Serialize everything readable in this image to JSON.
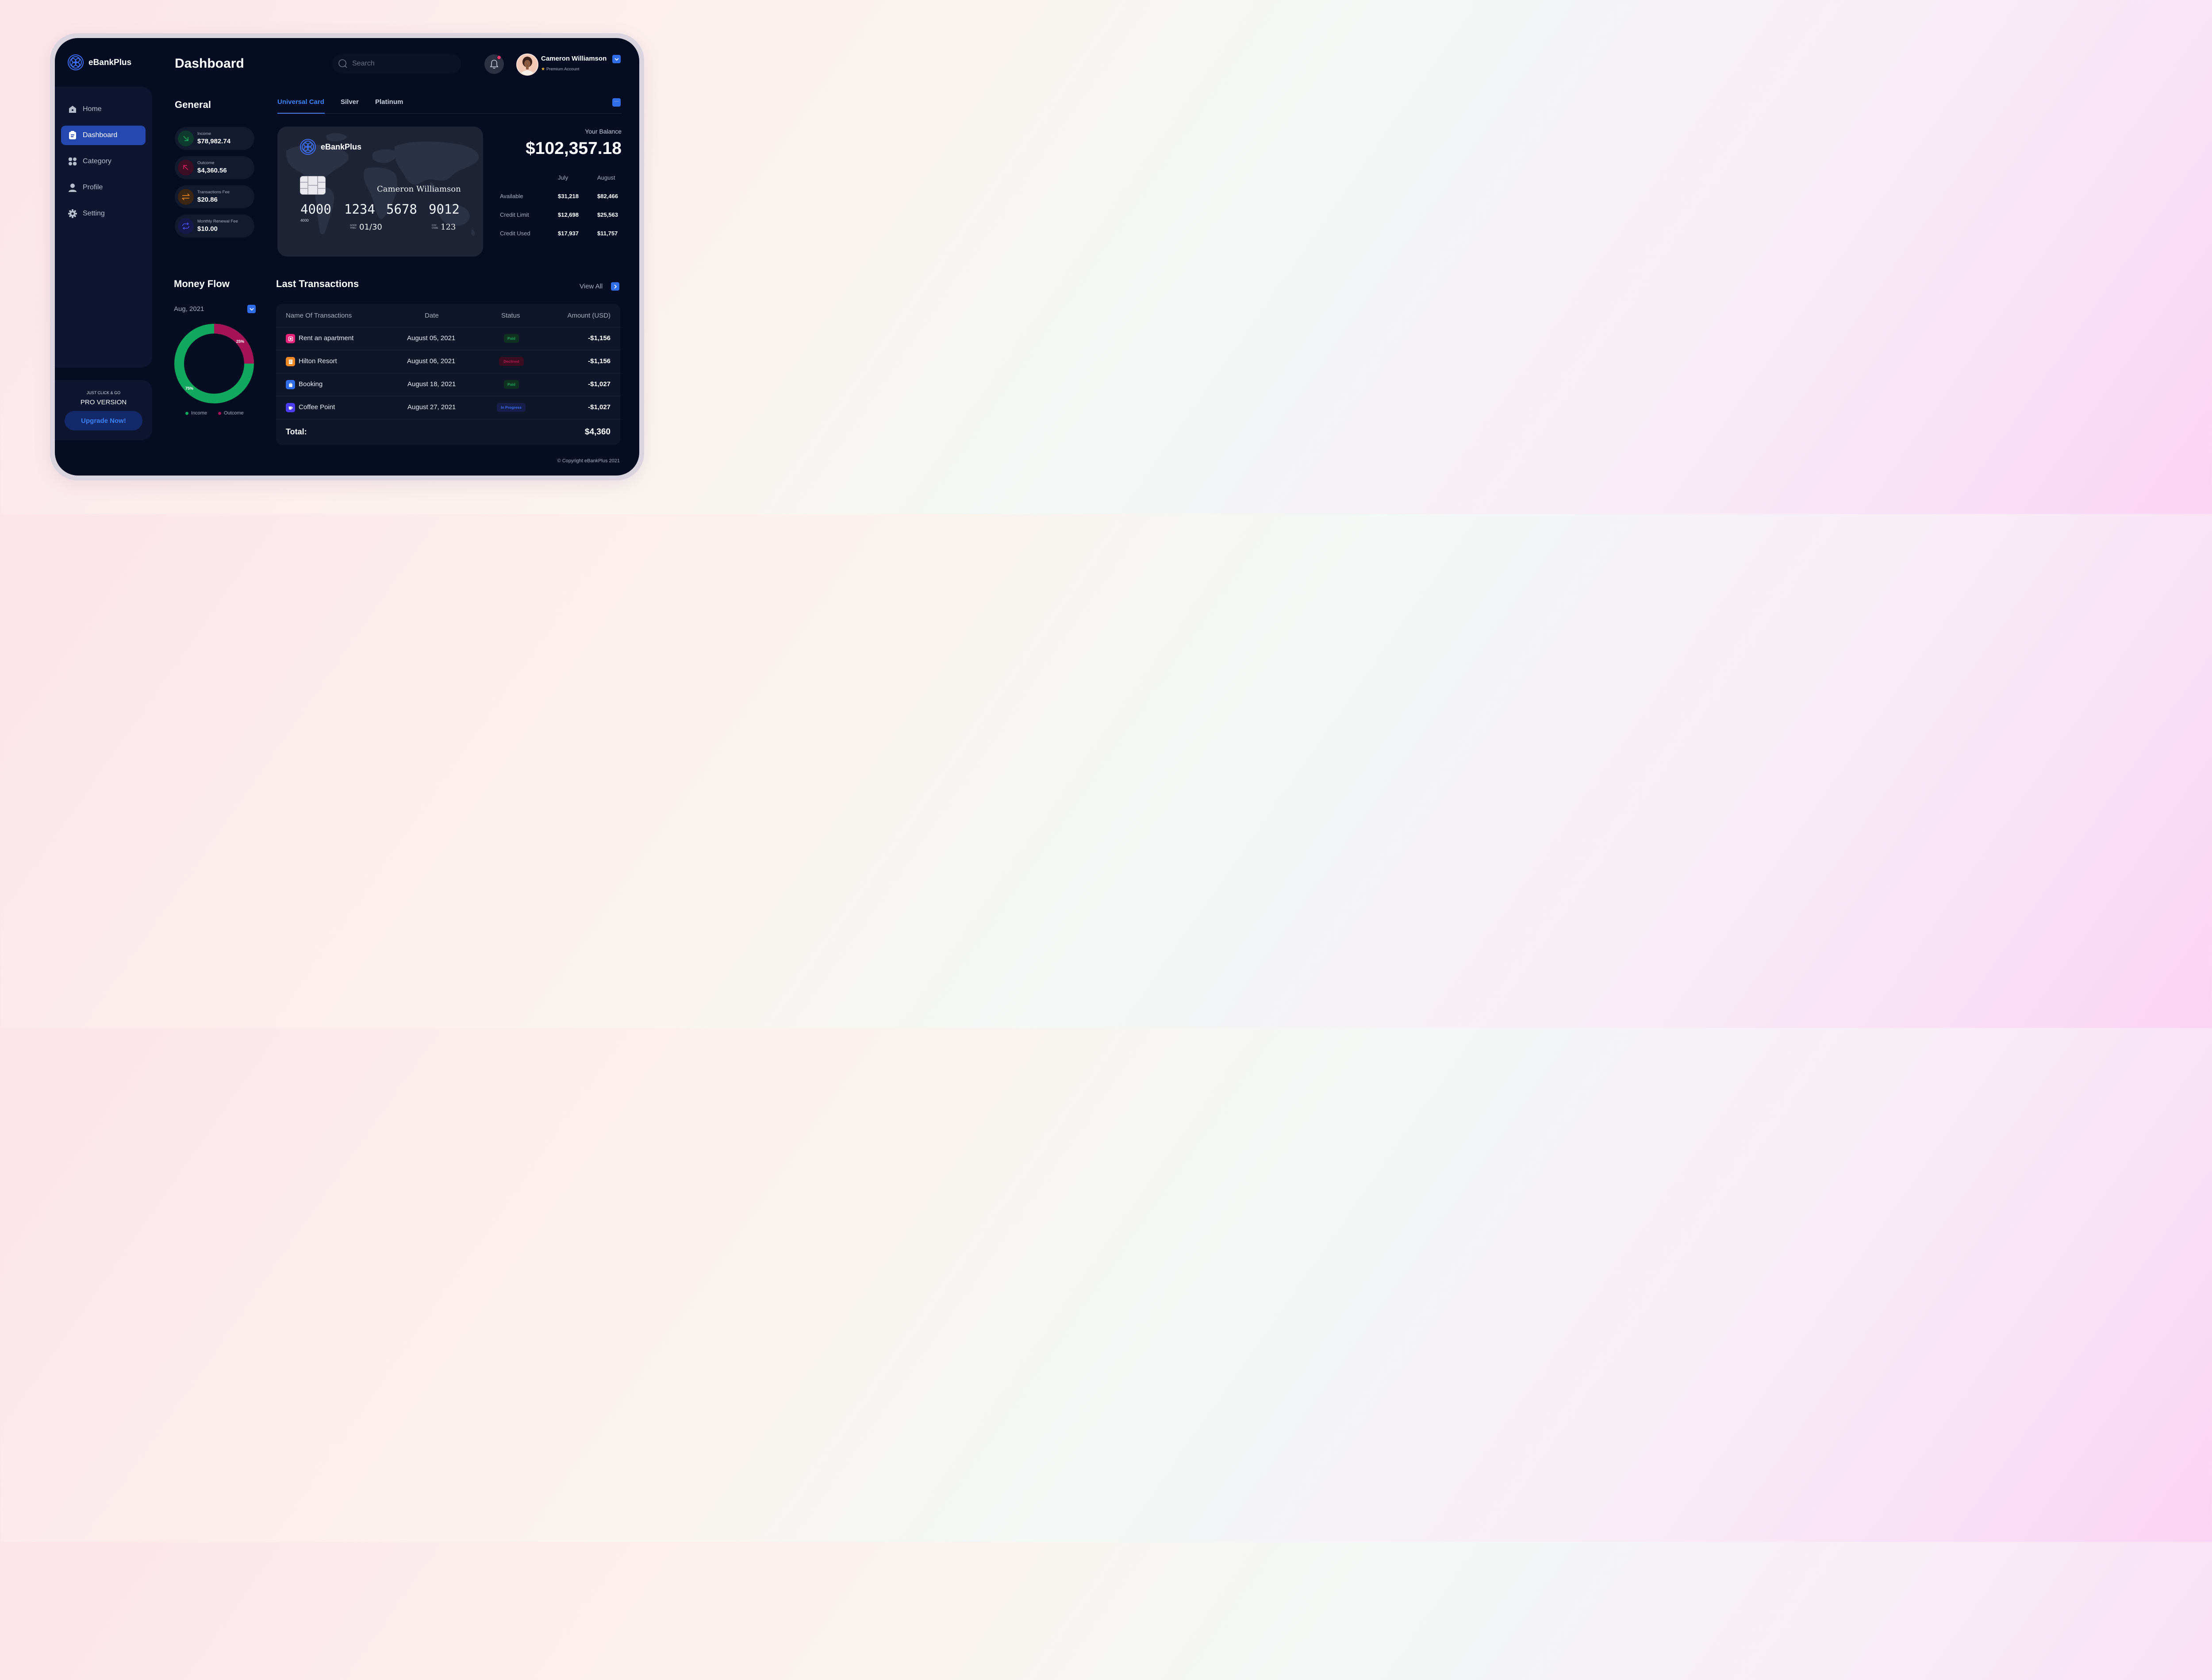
{
  "app": {
    "name": "eBankPlus"
  },
  "sidebar": {
    "items": [
      {
        "label": "Home",
        "icon": "home-icon"
      },
      {
        "label": "Dashboard",
        "icon": "clipboard-icon",
        "active": true
      },
      {
        "label": "Category",
        "icon": "grid-icon"
      },
      {
        "label": "Profile",
        "icon": "user-icon"
      },
      {
        "label": "Setting",
        "icon": "gear-icon"
      }
    ],
    "promo": {
      "eyebrow": "JUST CLICK & GO",
      "title": "PRO VERSION",
      "button": "Upgrade Now!"
    }
  },
  "header": {
    "title": "Dashboard",
    "search_placeholder": "Search",
    "user": {
      "name": "Cameron Williamson",
      "tier": "Premium Account"
    }
  },
  "general": {
    "title": "General",
    "stats": [
      {
        "label": "Income",
        "value": "$78,982.74",
        "icon": "arrow-down-right-icon",
        "color": "#1aa35a"
      },
      {
        "label": "Outcome",
        "value": "$4,360.56",
        "icon": "arrow-up-left-icon",
        "color": "#c41e55"
      },
      {
        "label": "Transactions Fee",
        "value": "$20.86",
        "icon": "swap-icon",
        "color": "#f08a24"
      },
      {
        "label": "Monthly Renewal Fee",
        "value": "$10.00",
        "icon": "repeat-icon",
        "color": "#3b3fd6"
      }
    ]
  },
  "tabs": [
    "Universal Card",
    "Silver",
    "Platinum"
  ],
  "card": {
    "brand": "eBankPlus",
    "holder": "Cameron Williamson",
    "number_groups": [
      "4000",
      "1234",
      "5678",
      "9012"
    ],
    "number_small": "4000",
    "good_thru_label_1": "GOOD",
    "good_thru_label_2": "THRU",
    "expiry": "01/30",
    "cvv_label_1": "CVV",
    "cvv_label_2": "CODE",
    "cvv": "123"
  },
  "balance": {
    "label": "Your Balance",
    "amount": "$102,357.18",
    "columns": [
      "July",
      "August"
    ],
    "rows": [
      {
        "label": "Available",
        "july": "$31,218",
        "august": "$82,466"
      },
      {
        "label": "Credit Limit",
        "july": "$12,698",
        "august": "$25,563"
      },
      {
        "label": "Credit Used",
        "july": "$17,937",
        "august": "$11,757"
      }
    ]
  },
  "money_flow": {
    "title": "Money Flow",
    "period": "Aug, 2021",
    "income_pct": 75,
    "outcome_pct": 25,
    "income_label": "75%",
    "outcome_label": "25%",
    "legend": [
      "Income",
      "Outcome"
    ],
    "colors": {
      "income": "#0fa85c",
      "outcome": "#a51255"
    }
  },
  "transactions": {
    "title": "Last Transactions",
    "view_all": "View All",
    "headers": [
      "Name Of Transactions",
      "Date",
      "Status",
      "Amount (USD)"
    ],
    "rows": [
      {
        "name": "Rent an apartment",
        "date": "August 05, 2021",
        "status": "Paid",
        "amount": "-$1,156",
        "icon": "home-icon",
        "icon_color": "#e8237a"
      },
      {
        "name": "Hilton Resort",
        "date": "August 06, 2021",
        "status": "Declined",
        "amount": "-$1,156",
        "icon": "building-icon",
        "icon_color": "#f08a24"
      },
      {
        "name": "Booking",
        "date": "August 18, 2021",
        "status": "Paid",
        "amount": "-$1,027",
        "icon": "bag-icon",
        "icon_color": "#2f6ee8"
      },
      {
        "name": "Coffee Point",
        "date": "August 27, 2021",
        "status": "In Progress",
        "amount": "-$1,027",
        "icon": "coffee-icon",
        "icon_color": "#4a3df0"
      }
    ],
    "total_label": "Total:",
    "total_value": "$4,360"
  },
  "footer": {
    "copyright": "© Copyright eBankPlus 2021"
  }
}
